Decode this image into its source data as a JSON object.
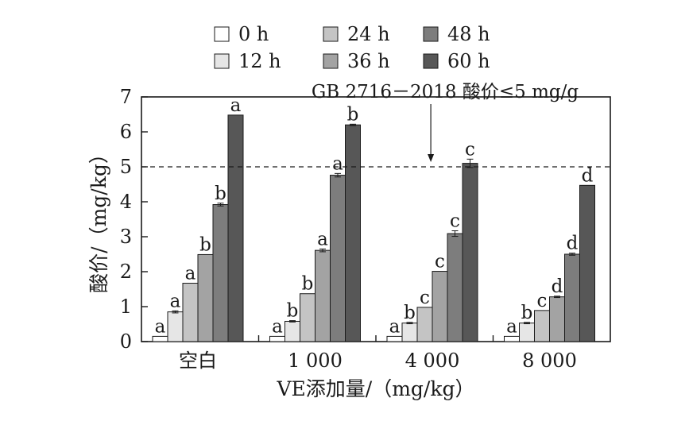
{
  "chart_data": {
    "type": "bar",
    "categories": [
      "空白",
      "1 000",
      "4 000",
      "8 000"
    ],
    "xlabel": "VE添加量/（mg/kg）",
    "ylabel": "酸价/（mg/kg）",
    "ylim": [
      0,
      7
    ],
    "yticks": [
      "0",
      "1",
      "2",
      "3",
      "4",
      "5",
      "6",
      "7"
    ],
    "legend_position": "top-center",
    "grid": false,
    "series": [
      {
        "name": "0 h",
        "color": "#ffffff",
        "values": [
          0.15,
          0.15,
          0.15,
          0.15
        ],
        "errors": [
          0,
          0,
          0,
          0
        ],
        "letters": [
          "a",
          "a",
          "a",
          "a"
        ]
      },
      {
        "name": "12 h",
        "color": "#e6e6e6",
        "values": [
          0.85,
          0.58,
          0.53,
          0.53
        ],
        "errors": [
          0.03,
          0.02,
          0.02,
          0.02
        ],
        "letters": [
          "a",
          "b",
          "b",
          "b"
        ]
      },
      {
        "name": "24 h",
        "color": "#c4c4c4",
        "values": [
          1.67,
          1.37,
          0.98,
          0.89
        ],
        "errors": [
          0,
          0,
          0,
          0
        ],
        "letters": [
          "a",
          "b",
          "c",
          "c"
        ]
      },
      {
        "name": "36 h",
        "color": "#a3a3a3",
        "values": [
          2.49,
          2.61,
          2.01,
          1.28
        ],
        "errors": [
          0,
          0.04,
          0,
          0.02
        ],
        "letters": [
          "b",
          "a",
          "c",
          "d"
        ]
      },
      {
        "name": "48 h",
        "color": "#7d7d7d",
        "values": [
          3.92,
          4.76,
          3.09,
          2.5
        ],
        "errors": [
          0.04,
          0.05,
          0.08,
          0.03
        ],
        "letters": [
          "b",
          "a",
          "c",
          "d"
        ]
      },
      {
        "name": "60 h",
        "color": "#575757",
        "values": [
          6.48,
          6.2,
          5.1,
          4.47
        ],
        "errors": [
          0,
          0.02,
          0.12,
          0
        ],
        "letters": [
          "a",
          "b",
          "c",
          "d"
        ]
      }
    ],
    "reference_line": {
      "value": 5,
      "style": "dashed"
    },
    "annotation": {
      "text": "GB 2716－2018 酸价≤5 mg/g",
      "points_to_category": "4 000",
      "points_to_value": 5
    }
  }
}
